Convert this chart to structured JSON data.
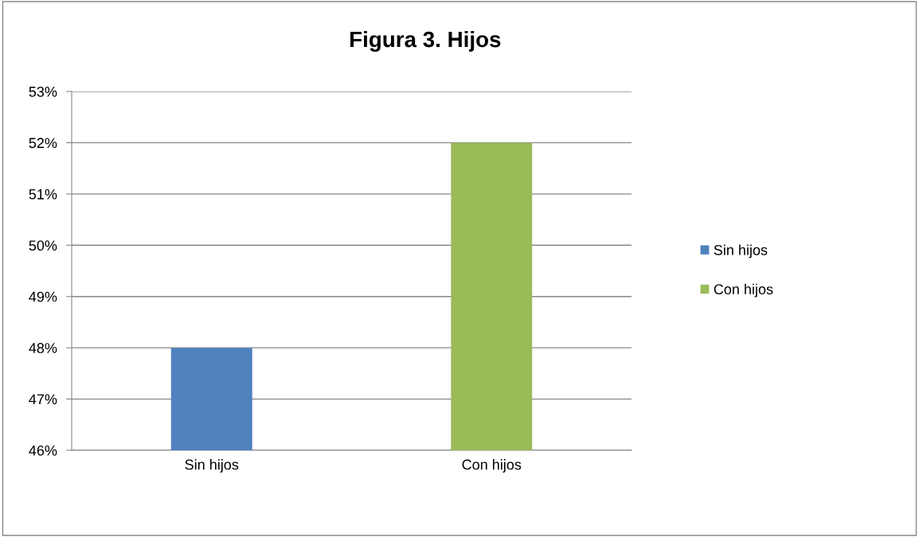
{
  "chart_data": {
    "type": "bar",
    "title": "Figura 3. Hijos",
    "categories": [
      "Sin hijos",
      "Con hijos"
    ],
    "series": [
      {
        "name": "Sin hijos",
        "color": "#4f81bd",
        "values": [
          48,
          null
        ]
      },
      {
        "name": "Con hijos",
        "color": "#9bbb59",
        "values": [
          null,
          52
        ]
      }
    ],
    "ylim": [
      46,
      53
    ],
    "yticks": [
      {
        "value": 46,
        "label": "46%"
      },
      {
        "value": 47,
        "label": "47%"
      },
      {
        "value": 48,
        "label": "48%"
      },
      {
        "value": 49,
        "label": "49%"
      },
      {
        "value": 50,
        "label": "50%"
      },
      {
        "value": 51,
        "label": "51%"
      },
      {
        "value": 52,
        "label": "52%"
      },
      {
        "value": 53,
        "label": "53%"
      }
    ],
    "grid": "y",
    "legend": "right"
  }
}
